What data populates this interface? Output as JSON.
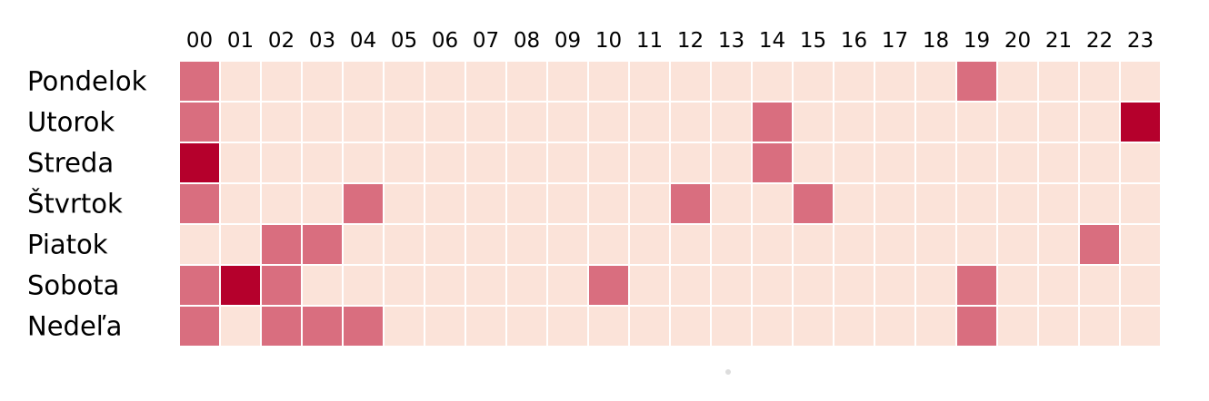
{
  "chart_data": {
    "type": "heatmap",
    "title": "",
    "xlabel": "",
    "ylabel": "",
    "x": [
      "00",
      "01",
      "02",
      "03",
      "04",
      "05",
      "06",
      "07",
      "08",
      "09",
      "10",
      "11",
      "12",
      "13",
      "14",
      "15",
      "16",
      "17",
      "18",
      "19",
      "20",
      "21",
      "22",
      "23"
    ],
    "y": [
      "Pondelok",
      "Utorok",
      "Streda",
      "Štvrtok",
      "Piatok",
      "Sobota",
      "Nedeľa"
    ],
    "values": [
      [
        1,
        0,
        0,
        0,
        0,
        0,
        0,
        0,
        0,
        0,
        0,
        0,
        0,
        0,
        0,
        0,
        0,
        0,
        0,
        1,
        0,
        0,
        0,
        0
      ],
      [
        1,
        0,
        0,
        0,
        0,
        0,
        0,
        0,
        0,
        0,
        0,
        0,
        0,
        0,
        1,
        0,
        0,
        0,
        0,
        0,
        0,
        0,
        0,
        2
      ],
      [
        2,
        0,
        0,
        0,
        0,
        0,
        0,
        0,
        0,
        0,
        0,
        0,
        0,
        0,
        1,
        0,
        0,
        0,
        0,
        0,
        0,
        0,
        0,
        0
      ],
      [
        1,
        0,
        0,
        0,
        1,
        0,
        0,
        0,
        0,
        0,
        0,
        0,
        1,
        0,
        0,
        1,
        0,
        0,
        0,
        0,
        0,
        0,
        0,
        0
      ],
      [
        0,
        0,
        1,
        1,
        0,
        0,
        0,
        0,
        0,
        0,
        0,
        0,
        0,
        0,
        0,
        0,
        0,
        0,
        0,
        0,
        0,
        0,
        1,
        0
      ],
      [
        1,
        2,
        1,
        0,
        0,
        0,
        0,
        0,
        0,
        0,
        1,
        0,
        0,
        0,
        0,
        0,
        0,
        0,
        0,
        1,
        0,
        0,
        0,
        0
      ],
      [
        1,
        0,
        1,
        1,
        1,
        0,
        0,
        0,
        0,
        0,
        0,
        0,
        0,
        0,
        0,
        0,
        0,
        0,
        0,
        1,
        0,
        0,
        0,
        0
      ]
    ],
    "colors": [
      "#fbe3d9",
      "#d96e7f",
      "#b5002c"
    ],
    "grid": true,
    "legend": "none"
  }
}
